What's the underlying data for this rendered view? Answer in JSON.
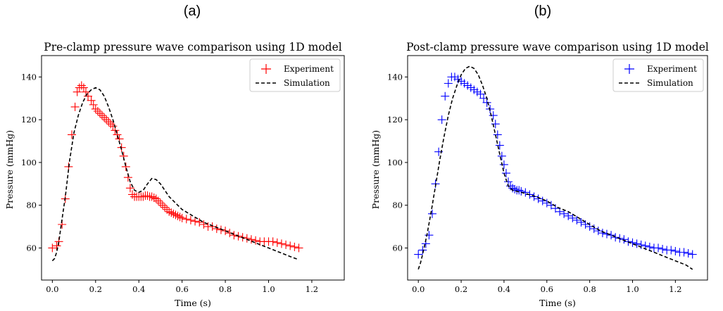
{
  "figure": {
    "panel_labels": [
      "(a)",
      "(b)"
    ]
  },
  "chart_data": [
    {
      "type": "line",
      "title": "Pre-clamp pressure wave comparison using 1D model",
      "xlabel": "Time (s)",
      "ylabel": "Pressure (mmHg)",
      "xlim": [
        -0.05,
        1.35
      ],
      "ylim": [
        45,
        150
      ],
      "xticks": [
        0.0,
        0.2,
        0.4,
        0.6,
        0.8,
        1.0,
        1.2
      ],
      "xtick_labels": [
        "0.0",
        "0.2",
        "0.4",
        "0.6",
        "0.8",
        "1.0",
        "1.2"
      ],
      "yticks": [
        60,
        80,
        100,
        120,
        140
      ],
      "ytick_labels": [
        "60",
        "80",
        "100",
        "120",
        "140"
      ],
      "grid": false,
      "legend_position": "top-right",
      "series": [
        {
          "name": "Experiment",
          "style": "markers-plus",
          "color": "#ff0000",
          "x": [
            0.0,
            0.02,
            0.03,
            0.045,
            0.06,
            0.075,
            0.09,
            0.105,
            0.115,
            0.125,
            0.135,
            0.145,
            0.155,
            0.165,
            0.18,
            0.19,
            0.2,
            0.21,
            0.22,
            0.23,
            0.24,
            0.25,
            0.26,
            0.27,
            0.28,
            0.29,
            0.3,
            0.31,
            0.32,
            0.33,
            0.34,
            0.35,
            0.36,
            0.37,
            0.38,
            0.39,
            0.4,
            0.41,
            0.42,
            0.43,
            0.44,
            0.45,
            0.46,
            0.47,
            0.48,
            0.49,
            0.5,
            0.51,
            0.52,
            0.53,
            0.54,
            0.55,
            0.56,
            0.57,
            0.58,
            0.59,
            0.6,
            0.62,
            0.64,
            0.66,
            0.68,
            0.7,
            0.72,
            0.74,
            0.76,
            0.78,
            0.8,
            0.82,
            0.84,
            0.86,
            0.88,
            0.9,
            0.92,
            0.94,
            0.96,
            0.98,
            1.0,
            1.02,
            1.04,
            1.06,
            1.08,
            1.1,
            1.12,
            1.14
          ],
          "y": [
            60,
            61,
            63,
            71,
            83,
            98,
            113,
            126,
            133,
            135,
            136,
            135,
            133,
            131,
            129,
            127,
            125,
            124,
            123,
            122,
            121,
            120,
            119,
            118,
            117,
            115,
            113,
            111,
            107,
            103,
            98,
            93,
            88,
            85,
            84,
            84,
            84,
            84,
            84,
            84.5,
            84.5,
            84,
            84,
            83.5,
            83,
            82,
            81,
            80,
            79,
            78,
            77,
            76.5,
            76,
            75.5,
            75,
            74.5,
            74,
            73.5,
            73,
            72.5,
            72,
            71,
            70,
            70,
            69,
            68.5,
            68,
            67,
            66,
            65.5,
            65,
            64.5,
            64,
            63.5,
            63,
            63,
            63,
            63,
            62.5,
            62,
            61.5,
            61,
            60.5,
            60
          ]
        },
        {
          "name": "Simulation",
          "style": "dashed",
          "color": "#000000",
          "x": [
            0.0,
            0.01,
            0.02,
            0.03,
            0.04,
            0.06,
            0.08,
            0.1,
            0.12,
            0.14,
            0.16,
            0.18,
            0.2,
            0.22,
            0.24,
            0.26,
            0.28,
            0.3,
            0.32,
            0.34,
            0.36,
            0.38,
            0.4,
            0.42,
            0.44,
            0.46,
            0.48,
            0.5,
            0.52,
            0.54,
            0.56,
            0.58,
            0.6,
            0.65,
            0.7,
            0.75,
            0.8,
            0.85,
            0.9,
            0.95,
            1.0,
            1.05,
            1.1,
            1.14
          ],
          "y": [
            54,
            55,
            58,
            63,
            70,
            84,
            101,
            114,
            122,
            128,
            132,
            134,
            135,
            134,
            131,
            126,
            120,
            113,
            106,
            98,
            91,
            87,
            86,
            87,
            90,
            92.5,
            92,
            90,
            87,
            84,
            82,
            80,
            78,
            75,
            72,
            70,
            68,
            66,
            64,
            62,
            60,
            58,
            56,
            54.5
          ]
        }
      ]
    },
    {
      "type": "line",
      "title": "Post-clamp pressure wave comparison using 1D model",
      "xlabel": "Time (s)",
      "ylabel": "Pressure (mmHg)",
      "xlim": [
        -0.05,
        1.35
      ],
      "ylim": [
        45,
        150
      ],
      "xticks": [
        0.0,
        0.2,
        0.4,
        0.6,
        0.8,
        1.0,
        1.2
      ],
      "xtick_labels": [
        "0.0",
        "0.2",
        "0.4",
        "0.6",
        "0.8",
        "1.0",
        "1.2"
      ],
      "yticks": [
        60,
        80,
        100,
        120,
        140
      ],
      "ytick_labels": [
        "60",
        "80",
        "100",
        "120",
        "140"
      ],
      "grid": false,
      "legend_position": "top-right",
      "series": [
        {
          "name": "Experiment",
          "style": "markers-plus",
          "color": "#0000ff",
          "x": [
            0.0,
            0.02,
            0.035,
            0.05,
            0.065,
            0.08,
            0.095,
            0.11,
            0.125,
            0.14,
            0.155,
            0.17,
            0.185,
            0.2,
            0.215,
            0.23,
            0.245,
            0.26,
            0.275,
            0.29,
            0.305,
            0.32,
            0.335,
            0.35,
            0.36,
            0.37,
            0.38,
            0.39,
            0.4,
            0.41,
            0.42,
            0.43,
            0.44,
            0.45,
            0.46,
            0.47,
            0.48,
            0.5,
            0.52,
            0.54,
            0.56,
            0.58,
            0.6,
            0.62,
            0.64,
            0.66,
            0.68,
            0.7,
            0.72,
            0.74,
            0.76,
            0.78,
            0.8,
            0.82,
            0.84,
            0.86,
            0.88,
            0.9,
            0.92,
            0.94,
            0.96,
            0.98,
            1.0,
            1.02,
            1.04,
            1.06,
            1.08,
            1.1,
            1.12,
            1.14,
            1.16,
            1.18,
            1.2,
            1.22,
            1.24,
            1.26,
            1.28
          ],
          "y": [
            57,
            59,
            62,
            66,
            76,
            90,
            105,
            120,
            131,
            137,
            140,
            140,
            139,
            138,
            137,
            136,
            135,
            134,
            133,
            132,
            130,
            128,
            125,
            122,
            118,
            113,
            108,
            103,
            99,
            95,
            91,
            89,
            88,
            87.5,
            87,
            87,
            86.5,
            86,
            85,
            84,
            83,
            82,
            81,
            80,
            78.5,
            77,
            76,
            75,
            74,
            73,
            72,
            71,
            70,
            69,
            68,
            67,
            66.5,
            66,
            65,
            64.5,
            64,
            63,
            62.5,
            62,
            61.5,
            61,
            60.5,
            60,
            60,
            59.5,
            59,
            59,
            58.5,
            58,
            58,
            57.5,
            57
          ]
        },
        {
          "name": "Simulation",
          "style": "dashed",
          "color": "#000000",
          "x": [
            0.0,
            0.01,
            0.02,
            0.04,
            0.06,
            0.08,
            0.1,
            0.12,
            0.14,
            0.16,
            0.18,
            0.2,
            0.22,
            0.24,
            0.26,
            0.28,
            0.3,
            0.32,
            0.34,
            0.36,
            0.38,
            0.4,
            0.42,
            0.44,
            0.46,
            0.48,
            0.5,
            0.55,
            0.6,
            0.65,
            0.7,
            0.75,
            0.8,
            0.85,
            0.9,
            0.95,
            1.0,
            1.05,
            1.1,
            1.15,
            1.2,
            1.25,
            1.28
          ],
          "y": [
            50,
            53,
            57,
            66,
            77,
            89,
            101,
            112,
            122,
            130,
            136,
            141,
            144,
            145,
            144,
            141,
            136,
            130,
            122,
            113,
            104,
            95,
            89,
            87,
            86.5,
            86,
            85.5,
            84,
            82,
            79,
            77,
            74,
            71,
            68,
            66,
            64,
            62,
            60,
            58,
            56,
            54,
            52,
            50
          ]
        }
      ]
    }
  ]
}
